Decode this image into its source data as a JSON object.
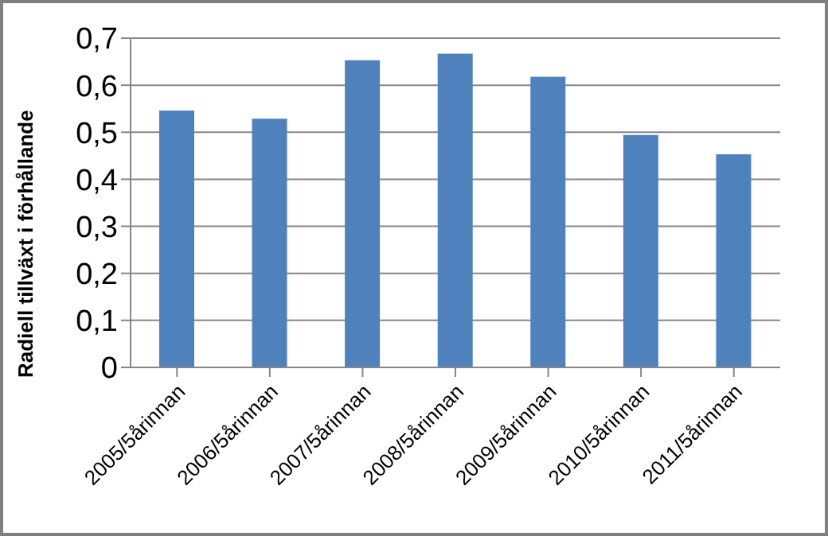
{
  "chart_data": {
    "type": "bar",
    "ylabel": "Radiell tillväxt i förhållande",
    "categories": [
      "2005/5årinnan",
      "2006/5årinnan",
      "2007/5årinnan",
      "2008/5årinnan",
      "2009/5årinnan",
      "2010/5årinnan",
      "2011/5årinnan"
    ],
    "values": [
      0.546,
      0.529,
      0.653,
      0.667,
      0.618,
      0.494,
      0.453
    ],
    "color": "#4f81bd",
    "ylim": [
      0,
      0.7
    ],
    "yticks": [
      0,
      {
        "value": 0.1,
        "label": "0,1"
      },
      {
        "value": 0.2,
        "label": "0,2"
      },
      {
        "value": 0.3,
        "label": "0,3"
      },
      {
        "value": 0.4,
        "label": "0,4"
      },
      {
        "value": 0.5,
        "label": "0,5"
      },
      {
        "value": 0.6,
        "label": "0,6"
      },
      {
        "value": 0.7,
        "label": "0,7"
      }
    ],
    "grid": "y"
  }
}
